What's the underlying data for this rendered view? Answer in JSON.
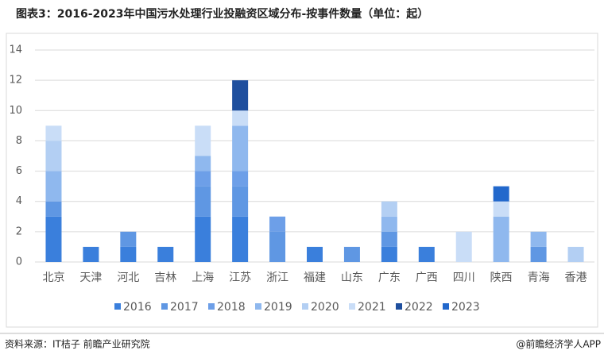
{
  "chart_data": {
    "type": "stacked_bar",
    "title": "图表3：2016-2023年中国污水处理行业投融资区域分布-按事件数量（单位：起）",
    "source": "资料来源：IT桔子 前瞻产业研究院",
    "brand": "@前瞻经济学人APP",
    "categories": [
      "北京",
      "天津",
      "河北",
      "吉林",
      "上海",
      "江苏",
      "浙江",
      "福建",
      "山东",
      "广东",
      "广西",
      "四川",
      "陕西",
      "青海",
      "香港"
    ],
    "series": [
      {
        "name": "2016",
        "color": "#3a7fdc",
        "values": [
          3,
          1,
          1,
          1,
          3,
          3,
          0,
          1,
          0,
          1,
          1,
          0,
          0,
          0,
          0
        ]
      },
      {
        "name": "2017",
        "color": "#5f97e3",
        "values": [
          1,
          0,
          1,
          0,
          2,
          2,
          2,
          0,
          1,
          1,
          0,
          0,
          0,
          1,
          0
        ]
      },
      {
        "name": "2018",
        "color": "#6d9fe8",
        "values": [
          0,
          0,
          0,
          0,
          1,
          1,
          1,
          0,
          0,
          0,
          0,
          0,
          0,
          0,
          0
        ]
      },
      {
        "name": "2019",
        "color": "#8fb8ee",
        "values": [
          2,
          0,
          0,
          0,
          1,
          3,
          0,
          0,
          0,
          1,
          0,
          0,
          3,
          1,
          0
        ]
      },
      {
        "name": "2020",
        "color": "#b3cff3",
        "values": [
          2,
          0,
          0,
          0,
          0,
          0,
          0,
          0,
          0,
          1,
          0,
          0,
          0,
          0,
          1
        ]
      },
      {
        "name": "2021",
        "color": "#c9ddf7",
        "values": [
          1,
          0,
          0,
          0,
          2,
          1,
          0,
          0,
          0,
          0,
          0,
          2,
          1,
          0,
          0
        ]
      },
      {
        "name": "2022",
        "color": "#1f4f9e",
        "values": [
          0,
          0,
          0,
          0,
          0,
          2,
          0,
          0,
          0,
          0,
          0,
          0,
          0,
          0,
          0
        ]
      },
      {
        "name": "2023",
        "color": "#2268cc",
        "values": [
          0,
          0,
          0,
          0,
          0,
          0,
          0,
          0,
          0,
          0,
          0,
          0,
          1,
          0,
          0
        ]
      }
    ],
    "ylim": [
      0,
      14
    ],
    "yticks": [
      0,
      2,
      4,
      6,
      8,
      10,
      12,
      14
    ],
    "grid": true
  }
}
